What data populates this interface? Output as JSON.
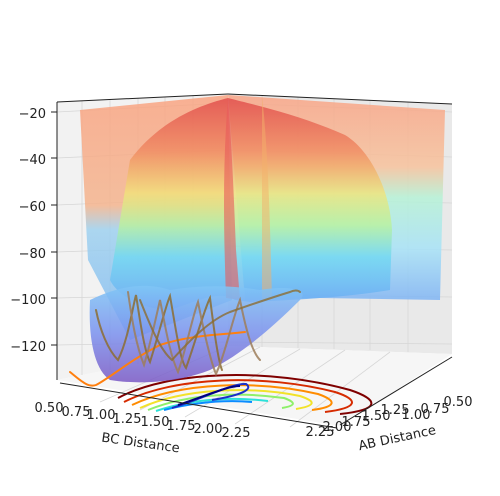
{
  "chart_data": {
    "type": "surface",
    "title": "",
    "xlabel": "BC Distance",
    "ylabel": "AB Distance",
    "zlabel": "",
    "x_ticks": [
      "0.50",
      "0.75",
      "1.00",
      "1.25",
      "1.50",
      "1.75",
      "2.00",
      "2.25"
    ],
    "y_ticks": [
      "0.50",
      "0.75",
      "1.00",
      "1.25",
      "1.50",
      "1.75",
      "2.00",
      "2.25"
    ],
    "z_ticks": [
      "−120",
      "−100",
      "−80",
      "−60",
      "−40",
      "−20"
    ],
    "xlim": [
      0.5,
      2.25
    ],
    "ylim": [
      0.5,
      2.25
    ],
    "zlim": [
      -135,
      -15
    ],
    "surface_colormap": "jet",
    "contour_levels": 10,
    "trajectory_colors": [
      "#ff7f0e",
      "#8c6d31",
      "#9e7e5a"
    ],
    "grid": true,
    "legend": "none"
  }
}
